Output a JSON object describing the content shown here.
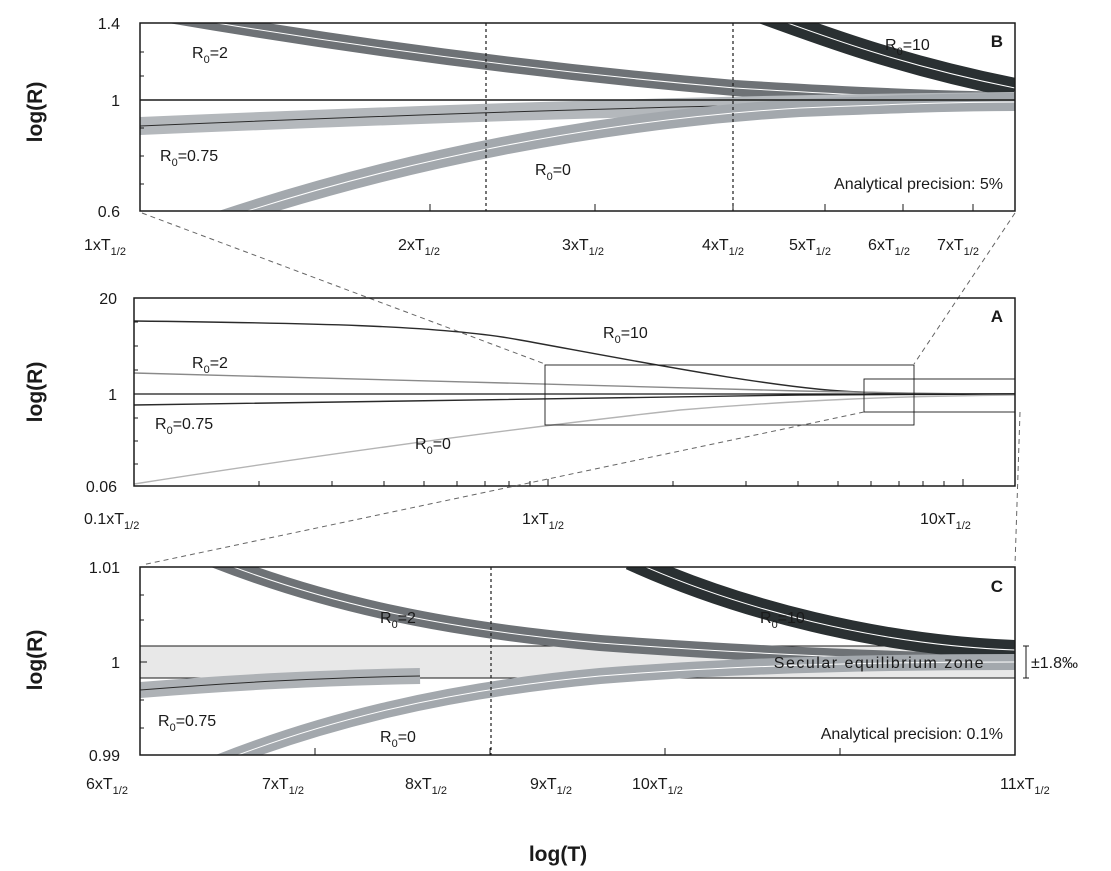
{
  "figure": {
    "xlabel": "log(T)"
  },
  "chart_data": [
    {
      "panel": "B",
      "type": "line",
      "ylabel": "log(R)",
      "y_ticks": [
        "1.4",
        "1",
        "0.6"
      ],
      "x_ticks": [
        {
          "v": 1,
          "m": "1xT",
          "s": "1/2"
        },
        {
          "v": 2,
          "m": "2xT",
          "s": "1/2"
        },
        {
          "v": 3,
          "m": "3xT",
          "s": "1/2"
        },
        {
          "v": 4,
          "m": "4xT",
          "s": "1/2"
        },
        {
          "v": 5,
          "m": "5xT",
          "s": "1/2"
        },
        {
          "v": 6,
          "m": "6xT",
          "s": "1/2"
        },
        {
          "v": 7,
          "m": "7xT",
          "s": "1/2"
        }
      ],
      "xlim": [
        1,
        7.4
      ],
      "ylim": [
        0.6,
        1.4
      ],
      "band_label": "Analytical precision: 5%",
      "series": [
        {
          "name": "R0=2",
          "label_main": "R",
          "label_sub": "0",
          "label_rest": "=2",
          "color": "#6e7276",
          "x": [
            1,
            1.5,
            2,
            2.5,
            3,
            3.5,
            4,
            5,
            6,
            7,
            7.4
          ],
          "y": [
            1.5,
            1.37,
            1.26,
            1.18,
            1.12,
            1.08,
            1.05,
            1.03,
            1.02,
            1.01,
            1.0
          ]
        },
        {
          "name": "R0=10",
          "label_main": "R",
          "label_sub": "0",
          "label_rest": "=10",
          "color": "#2a3032",
          "x": [
            4.4,
            5,
            5.5,
            6,
            6.5,
            7,
            7.4
          ],
          "y": [
            1.45,
            1.3,
            1.22,
            1.15,
            1.1,
            1.05,
            1.02
          ]
        },
        {
          "name": "R0=0.75",
          "label_main": "R",
          "label_sub": "0",
          "label_rest": "=0.75",
          "color": "#aeb2b6",
          "x": [
            1,
            2,
            3,
            4,
            5,
            6,
            7,
            7.4
          ],
          "y": [
            0.88,
            0.93,
            0.96,
            0.98,
            0.99,
            0.995,
            0.998,
            1.0
          ]
        },
        {
          "name": "R0=0",
          "label_main": "R",
          "label_sub": "0",
          "label_rest": "=0",
          "color": "#a3a8ad",
          "x": [
            1.5,
            2,
            2.5,
            3,
            3.5,
            4,
            5,
            6,
            7,
            7.4
          ],
          "y": [
            0.5,
            0.63,
            0.72,
            0.78,
            0.83,
            0.86,
            0.92,
            0.96,
            0.98,
            0.99
          ]
        }
      ],
      "vlines": [
        2.3,
        4.1
      ]
    },
    {
      "panel": "A",
      "type": "line",
      "ylabel": "log(R)",
      "y_ticks": [
        "20",
        "1",
        "0.06"
      ],
      "x_ticks": [
        {
          "v": 0.1,
          "m": "0.1xT",
          "s": "1/2"
        },
        {
          "v": 1,
          "m": "1xT",
          "s": "1/2"
        },
        {
          "v": 10,
          "m": "10xT",
          "s": "1/2"
        }
      ],
      "xlim": [
        0.1,
        13
      ],
      "ylim": [
        0.06,
        20
      ],
      "xscale": "log",
      "yscale": "log",
      "series": [
        {
          "name": "R0=10",
          "label_main": "R",
          "label_sub": "0",
          "label_rest": "=10",
          "color": "#2b2b2b",
          "x": [
            0.1,
            0.3,
            0.8,
            1.3,
            2,
            3,
            4.5,
            6,
            8
          ],
          "y": [
            10,
            9.5,
            8,
            6.5,
            4.4,
            2.6,
            1.5,
            1.1,
            1.0
          ]
        },
        {
          "name": "R0=2",
          "label_main": "R",
          "label_sub": "0",
          "label_rest": "=2",
          "color": "#8a8a8a",
          "x": [
            0.1,
            1,
            4,
            8
          ],
          "y": [
            2,
            1.5,
            1.1,
            1.0
          ]
        },
        {
          "name": "R0=0.75",
          "label_main": "R",
          "label_sub": "0",
          "label_rest": "=0.75",
          "color": "#2b2b2b",
          "x": [
            0.1,
            1,
            4,
            8
          ],
          "y": [
            0.8,
            0.9,
            0.97,
            1.0
          ]
        },
        {
          "name": "R0=0",
          "label_main": "R",
          "label_sub": "0",
          "label_rest": "=0",
          "color": "#b4b4b4",
          "x": [
            0.1,
            0.4,
            1,
            2,
            4,
            8
          ],
          "y": [
            0.07,
            0.15,
            0.35,
            0.6,
            0.85,
            0.98
          ]
        }
      ],
      "zoom_boxes": [
        {
          "x": [
            1,
            7.4
          ],
          "y": [
            0.6,
            1.4
          ]
        },
        {
          "x": [
            6,
            13
          ],
          "y": [
            0.7,
            1.3
          ]
        }
      ]
    },
    {
      "panel": "C",
      "type": "line",
      "ylabel": "log(R)",
      "y_ticks": [
        "1.01",
        "1",
        "0.99"
      ],
      "x_ticks": [
        {
          "v": 6,
          "m": "6xT",
          "s": "1/2"
        },
        {
          "v": 7,
          "m": "7xT",
          "s": "1/2"
        },
        {
          "v": 8,
          "m": "8xT",
          "s": "1/2"
        },
        {
          "v": 9,
          "m": "9xT",
          "s": "1/2"
        },
        {
          "v": 10,
          "m": "10xT",
          "s": "1/2"
        },
        {
          "v": 11,
          "m": "11xT",
          "s": "1/2"
        }
      ],
      "xlim": [
        6,
        11
      ],
      "ylim": [
        0.99,
        1.01
      ],
      "zone_label": "Secular equilibrium zone",
      "zone_bracket": "±1.8‰",
      "band_label": "Analytical precision: 0.1%",
      "series": [
        {
          "name": "R0=2",
          "label_main": "R",
          "label_sub": "0",
          "label_rest": "=2",
          "color": "#6e7276",
          "x": [
            6.7,
            7,
            7.5,
            8,
            8.5,
            9,
            10,
            11
          ],
          "y": [
            1.01,
            1.0082,
            1.0055,
            1.0035,
            1.0022,
            1.0014,
            1.0006,
            1.0002
          ]
        },
        {
          "name": "R0=10",
          "label_main": "R",
          "label_sub": "0",
          "label_rest": "=10",
          "color": "#2a3032",
          "x": [
            9.5,
            10,
            10.5,
            11
          ],
          "y": [
            1.01,
            1.0065,
            1.0035,
            1.0015
          ]
        },
        {
          "name": "R0=0.75",
          "label_main": "R",
          "label_sub": "0",
          "label_rest": "=0.75",
          "color": "#aeb2b6",
          "x": [
            6,
            6.5,
            7,
            7.5,
            8
          ],
          "y": [
            0.9965,
            0.9975,
            0.9983,
            0.9989,
            0.9994
          ]
        },
        {
          "name": "R0=0",
          "label_main": "R",
          "label_sub": "0",
          "label_rest": "=0",
          "color": "#a3a8ad",
          "x": [
            6.5,
            7,
            7.5,
            8,
            8.5,
            9,
            10,
            11
          ],
          "y": [
            0.9895,
            0.9925,
            0.9948,
            0.9966,
            0.9978,
            0.9987,
            0.9996,
            1.0
          ]
        }
      ],
      "vlines": [
        8.5
      ]
    }
  ]
}
